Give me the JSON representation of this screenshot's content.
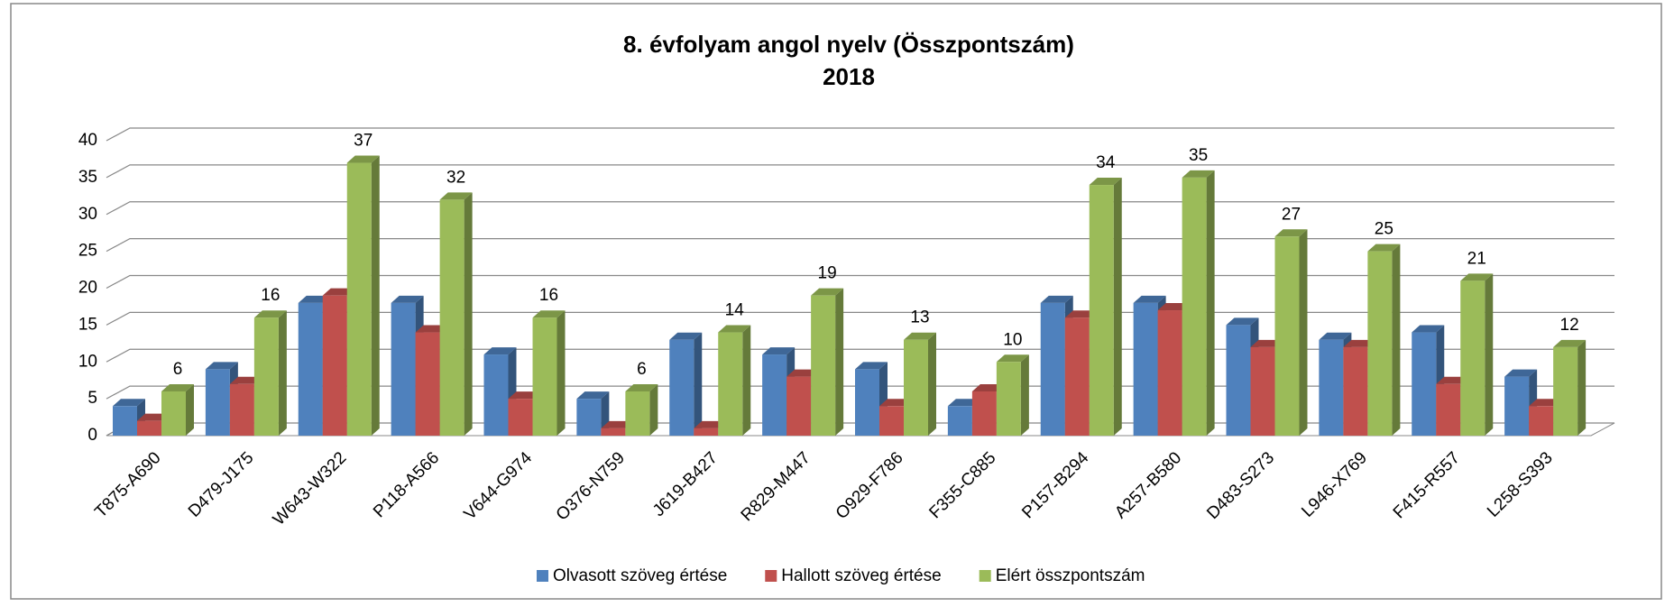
{
  "chart_data": {
    "type": "bar3d",
    "title": "8. évfolyam angol nyelv (Összpontszám)",
    "subtitle": "2018",
    "categories": [
      "T875-A690",
      "D479-J175",
      "W643-W322",
      "P118-A566",
      "V644-G974",
      "O376-N759",
      "J619-B427",
      "R829-M447",
      "O929-F786",
      "F355-C885",
      "P157-B294",
      "A257-B580",
      "D483-S273",
      "L946-X769",
      "F415-R557",
      "L258-S393"
    ],
    "series": [
      {
        "name": "Olvasott szöveg értése",
        "color": "#4f81bd",
        "values": [
          4,
          9,
          18,
          18,
          11,
          5,
          13,
          11,
          9,
          4,
          18,
          18,
          15,
          13,
          14,
          8
        ]
      },
      {
        "name": "Hallott szöveg értése",
        "color": "#c0504d",
        "values": [
          2,
          7,
          19,
          14,
          5,
          1,
          1,
          8,
          4,
          6,
          16,
          17,
          12,
          12,
          7,
          4
        ]
      },
      {
        "name": "Elért összpontszám",
        "color": "#9bbb59",
        "values": [
          6,
          16,
          37,
          32,
          16,
          6,
          14,
          19,
          13,
          10,
          34,
          35,
          27,
          25,
          21,
          12
        ],
        "labels": true
      }
    ],
    "ylim": [
      0,
      40
    ],
    "yticks": [
      0,
      5,
      10,
      15,
      20,
      25,
      30,
      35,
      40
    ],
    "grid": true,
    "legend": "bottom"
  }
}
